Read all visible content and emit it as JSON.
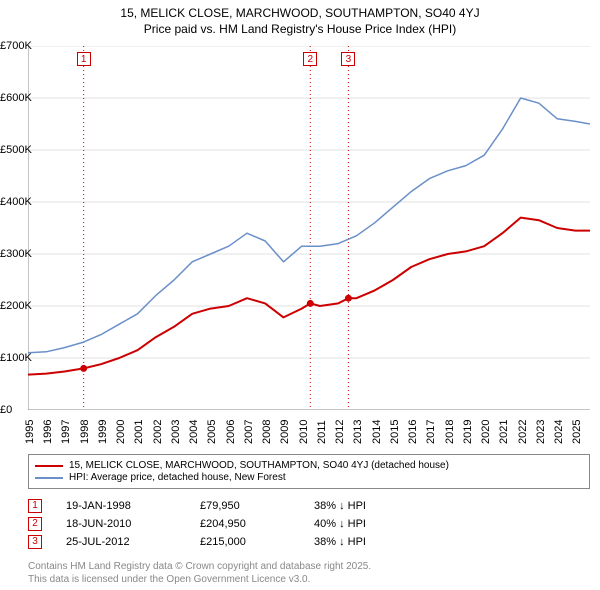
{
  "title": {
    "line1": "15, MELICK CLOSE, MARCHWOOD, SOUTHAMPTON, SO40 4YJ",
    "line2": "Price paid vs. HM Land Registry's House Price Index (HPI)",
    "fontsize": 12,
    "color": "#000000"
  },
  "chart": {
    "type": "line",
    "background_color": "#ffffff",
    "grid_color": "#e0e0e0",
    "axis_color": "#888888",
    "x": {
      "min": 1995,
      "max": 2025.8,
      "ticks": [
        1995,
        1996,
        1997,
        1998,
        1999,
        2000,
        2001,
        2002,
        2003,
        2004,
        2005,
        2006,
        2007,
        2008,
        2009,
        2010,
        2011,
        2012,
        2013,
        2014,
        2015,
        2016,
        2017,
        2018,
        2019,
        2020,
        2021,
        2022,
        2023,
        2024,
        2025
      ],
      "tick_labels": [
        "1995",
        "1996",
        "1997",
        "1998",
        "1999",
        "2000",
        "2001",
        "2002",
        "2003",
        "2004",
        "2005",
        "2006",
        "2007",
        "2008",
        "2009",
        "2010",
        "2011",
        "2012",
        "2013",
        "2014",
        "2015",
        "2016",
        "2017",
        "2018",
        "2019",
        "2020",
        "2021",
        "2022",
        "2023",
        "2024",
        "2025"
      ],
      "fontsize": 11,
      "rotation": -90
    },
    "y": {
      "min": 0,
      "max": 700000,
      "ticks": [
        0,
        100000,
        200000,
        300000,
        400000,
        500000,
        600000,
        700000
      ],
      "tick_labels": [
        "£0",
        "£100K",
        "£200K",
        "£300K",
        "£400K",
        "£500K",
        "£600K",
        "£700K"
      ],
      "fontsize": 11
    },
    "series": [
      {
        "name": "price-paid",
        "label": "15, MELICK CLOSE, MARCHWOOD, SOUTHAMPTON, SO40 4YJ (detached house)",
        "color": "#cc0000",
        "line_width": 2,
        "points": [
          [
            1995,
            68000
          ],
          [
            1996,
            70000
          ],
          [
            1997,
            74000
          ],
          [
            1998.05,
            79950
          ],
          [
            1999,
            88000
          ],
          [
            2000,
            100000
          ],
          [
            2001,
            115000
          ],
          [
            2002,
            140000
          ],
          [
            2003,
            160000
          ],
          [
            2004,
            185000
          ],
          [
            2005,
            195000
          ],
          [
            2006,
            200000
          ],
          [
            2007,
            215000
          ],
          [
            2008,
            205000
          ],
          [
            2009,
            178000
          ],
          [
            2010,
            195000
          ],
          [
            2010.47,
            204950
          ],
          [
            2011,
            200000
          ],
          [
            2012,
            205000
          ],
          [
            2012.56,
            215000
          ],
          [
            2013,
            215000
          ],
          [
            2014,
            230000
          ],
          [
            2015,
            250000
          ],
          [
            2016,
            275000
          ],
          [
            2017,
            290000
          ],
          [
            2018,
            300000
          ],
          [
            2019,
            305000
          ],
          [
            2020,
            315000
          ],
          [
            2021,
            340000
          ],
          [
            2022,
            370000
          ],
          [
            2023,
            365000
          ],
          [
            2024,
            350000
          ],
          [
            2025,
            345000
          ],
          [
            2025.8,
            345000
          ]
        ]
      },
      {
        "name": "hpi",
        "label": "HPI: Average price, detached house, New Forest",
        "color": "#6b8fc9",
        "line_width": 1.5,
        "points": [
          [
            1995,
            110000
          ],
          [
            1996,
            112000
          ],
          [
            1997,
            120000
          ],
          [
            1998,
            130000
          ],
          [
            1999,
            145000
          ],
          [
            2000,
            165000
          ],
          [
            2001,
            185000
          ],
          [
            2002,
            220000
          ],
          [
            2003,
            250000
          ],
          [
            2004,
            285000
          ],
          [
            2005,
            300000
          ],
          [
            2006,
            315000
          ],
          [
            2007,
            340000
          ],
          [
            2008,
            325000
          ],
          [
            2009,
            285000
          ],
          [
            2010,
            315000
          ],
          [
            2011,
            315000
          ],
          [
            2012,
            320000
          ],
          [
            2013,
            335000
          ],
          [
            2014,
            360000
          ],
          [
            2015,
            390000
          ],
          [
            2016,
            420000
          ],
          [
            2017,
            445000
          ],
          [
            2018,
            460000
          ],
          [
            2019,
            470000
          ],
          [
            2020,
            490000
          ],
          [
            2021,
            540000
          ],
          [
            2022,
            600000
          ],
          [
            2023,
            590000
          ],
          [
            2024,
            560000
          ],
          [
            2025,
            555000
          ],
          [
            2025.8,
            550000
          ]
        ]
      }
    ],
    "markers": [
      {
        "n": "1",
        "x": 1998.05,
        "y": 79950,
        "color": "#cc0000"
      },
      {
        "n": "2",
        "x": 2010.47,
        "y": 204950,
        "color": "#cc0000"
      },
      {
        "n": "3",
        "x": 2012.56,
        "y": 215000,
        "color": "#cc0000"
      }
    ]
  },
  "legend": {
    "border_color": "#888888",
    "fontsize": 10,
    "items": [
      {
        "color": "#cc0000",
        "label": "15, MELICK CLOSE, MARCHWOOD, SOUTHAMPTON, SO40 4YJ (detached house)"
      },
      {
        "color": "#6b8fc9",
        "label": "HPI: Average price, detached house, New Forest"
      }
    ]
  },
  "transactions": {
    "fontsize": 11,
    "marker_border": "#cc0000",
    "rows": [
      {
        "n": "1",
        "date": "19-JAN-1998",
        "price": "£79,950",
        "hpi": "38% ↓ HPI"
      },
      {
        "n": "2",
        "date": "18-JUN-2010",
        "price": "£204,950",
        "hpi": "40% ↓ HPI"
      },
      {
        "n": "3",
        "date": "25-JUL-2012",
        "price": "£215,000",
        "hpi": "38% ↓ HPI"
      }
    ]
  },
  "footer": {
    "line1": "Contains HM Land Registry data © Crown copyright and database right 2025.",
    "line2": "This data is licensed under the Open Government Licence v3.0.",
    "color": "#888888",
    "fontsize": 10
  }
}
